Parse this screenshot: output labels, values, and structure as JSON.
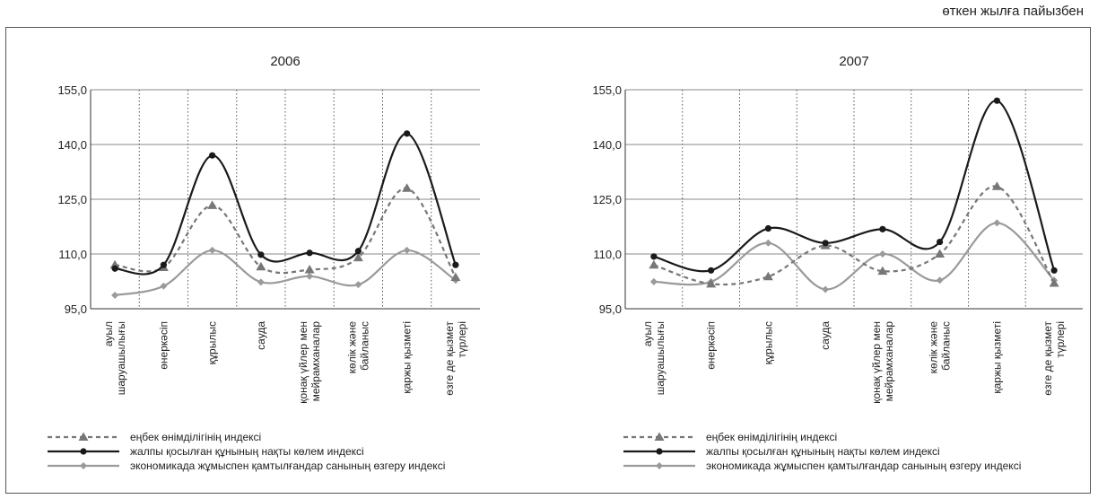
{
  "note": "өткен жылға пайызбен",
  "chart_data": [
    {
      "type": "line",
      "title": "2006",
      "categories": [
        "ауыл|шаруашылығы",
        "өнеркәсіп",
        "құрылыс",
        "сауда",
        "қонақ үйлер мен|мейрамханалар",
        "көлік және|байланыс",
        "қаржы қызметі",
        "өзге де қызмет|түрлері"
      ],
      "yticks": [
        "155,0",
        "140,0",
        "125,0",
        "110,0",
        "95,0"
      ],
      "ylim": [
        95,
        155
      ],
      "series": [
        {
          "name": "еңбек өнімділігінің индексі",
          "values": [
            107.0,
            106.3,
            123.3,
            106.5,
            105.7,
            109.0,
            128.0,
            103.6
          ],
          "style": "dashed",
          "marker": "triangle",
          "color": "#777777"
        },
        {
          "name": "жалпы қосылған құнының нақты көлем индексі",
          "values": [
            106.0,
            107.0,
            137.0,
            109.8,
            110.3,
            110.8,
            143.0,
            107.0
          ],
          "style": "solid",
          "marker": "circle",
          "color": "#1a1a1a"
        },
        {
          "name": "экономикада жұмыспен қамтылғандар санының өзгеру индексі",
          "values": [
            98.7,
            101.2,
            111.0,
            102.3,
            103.9,
            101.6,
            111.0,
            102.8
          ],
          "style": "solid",
          "marker": "diamond",
          "color": "#9a9a9a"
        }
      ]
    },
    {
      "type": "line",
      "title": "2007",
      "categories": [
        "ауыл|шаруашылығы",
        "өнеркәсіп",
        "құрылыс",
        "сауда",
        "қонақ үйлер мен|мейрамханалар",
        "көлік және|байланыс",
        "қаржы қызметі",
        "өзге де қызмет|түрлері"
      ],
      "yticks": [
        "155,0",
        "140,0",
        "125,0",
        "110,0",
        "95,0"
      ],
      "ylim": [
        95,
        155
      ],
      "series": [
        {
          "name": "еңбек өнімділігінің индексі",
          "values": [
            107.0,
            101.8,
            103.8,
            112.3,
            105.3,
            110.0,
            128.5,
            102.0
          ],
          "style": "dashed",
          "marker": "triangle",
          "color": "#777777"
        },
        {
          "name": "жалпы қосылған құнының нақты көлем индексі",
          "values": [
            109.3,
            105.5,
            117.0,
            113.0,
            116.8,
            113.3,
            152.0,
            105.5
          ],
          "style": "solid",
          "marker": "circle",
          "color": "#1a1a1a"
        },
        {
          "name": "экономикада жұмыспен қамтылғандар санының өзгеру индексі",
          "values": [
            102.4,
            102.4,
            113.0,
            100.3,
            110.0,
            102.8,
            118.5,
            102.8
          ],
          "style": "solid",
          "marker": "diamond",
          "color": "#9a9a9a"
        }
      ]
    }
  ]
}
